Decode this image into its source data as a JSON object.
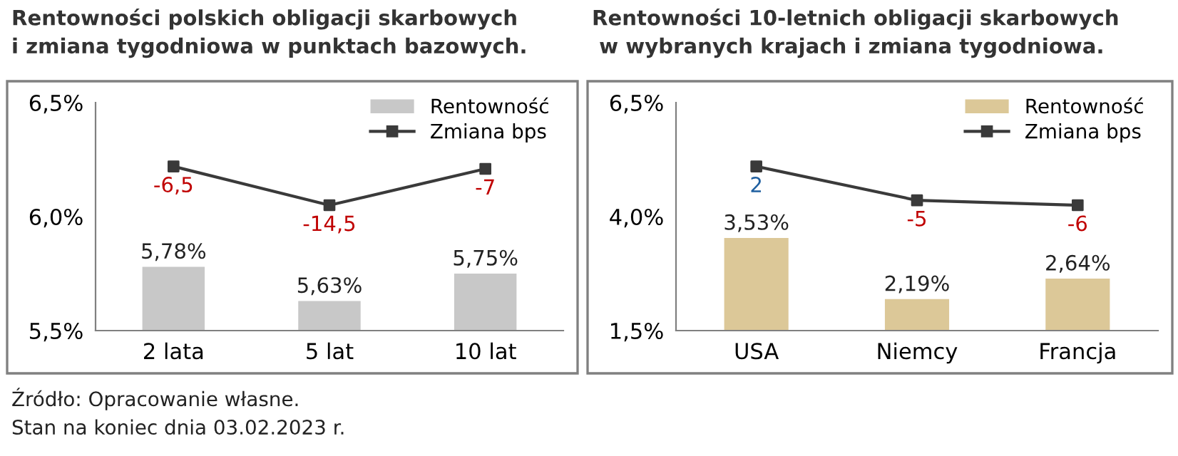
{
  "chart_data": [
    {
      "type": "bar",
      "title": "Rentowności polskich obligacji skarbowych\ni zmiana tygodniowa w punktach bazowych.",
      "categories": [
        "2 lata",
        "5 lat",
        "10 lat"
      ],
      "ylim": [
        5.5,
        6.5
      ],
      "yticks": [
        {
          "value": 5.5,
          "label": "5,5%"
        },
        {
          "value": 6.0,
          "label": "6,0%"
        },
        {
          "value": 6.5,
          "label": "6,5%"
        }
      ],
      "grid": false,
      "legend": "top right",
      "series": [
        {
          "name": "Rentowność",
          "type": "bar",
          "color": "#c8c8c8",
          "values": [
            5.78,
            5.63,
            5.75
          ],
          "value_labels": [
            "5,78%",
            "5,63%",
            "5,75%"
          ]
        },
        {
          "name": "Zmiana bps",
          "type": "line",
          "axis": "y2",
          "color": "#3a3a3a",
          "marker": "square",
          "values": [
            -6.5,
            -14.5,
            -7
          ],
          "value_labels": [
            "-6,5",
            "-14,5",
            "-7"
          ]
        }
      ]
    },
    {
      "type": "bar",
      "title": "Rentowności 10-letnich obligacji skarbowych\n w wybranych krajach i zmiana tygodniowa.",
      "categories": [
        "USA",
        "Niemcy",
        "Francja"
      ],
      "ylim": [
        1.5,
        6.5
      ],
      "yticks": [
        {
          "value": 1.5,
          "label": "1,5%"
        },
        {
          "value": 4.0,
          "label": "4,0%"
        },
        {
          "value": 6.5,
          "label": "6,5%"
        }
      ],
      "grid": false,
      "legend": "top right",
      "annotations": [
        "Źródło: Opracowanie własne.",
        "Stan na koniec dnia 03.02.2023 r."
      ],
      "series": [
        {
          "name": "Rentowność",
          "type": "bar",
          "color": "#dcc898",
          "values": [
            3.53,
            2.19,
            2.64
          ],
          "value_labels": [
            "3,53%",
            "2,19%",
            "2,64%"
          ]
        },
        {
          "name": "Zmiana bps",
          "type": "line",
          "axis": "y2",
          "color": "#3a3a3a",
          "marker": "square",
          "values": [
            2,
            -5,
            -6
          ],
          "value_labels": [
            "2",
            "-5",
            "-6"
          ]
        }
      ]
    }
  ]
}
